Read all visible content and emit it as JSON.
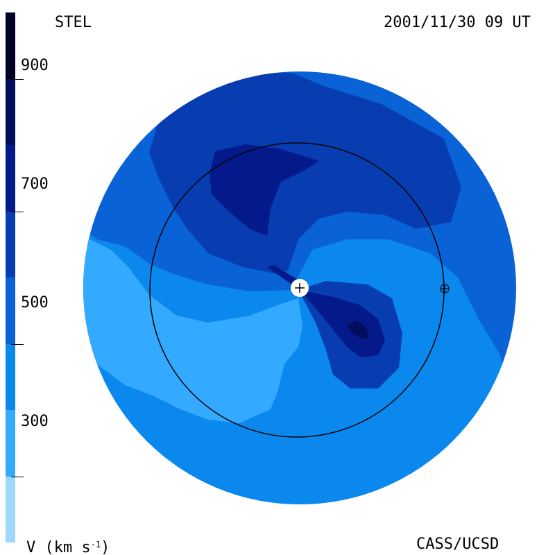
{
  "header": {
    "source": "STEL",
    "timestamp": "2001/11/30 09 UT"
  },
  "footer": {
    "units_text": "V (km s",
    "units_exponent": "-1",
    "units_close": ")",
    "credit": "CASS/UCSD"
  },
  "colorbar": {
    "quantity": "V",
    "unit": "km s-1",
    "tick_labels": [
      "900",
      "700",
      "500",
      "300"
    ],
    "tick_values": [
      900,
      700,
      500,
      300
    ],
    "levels": [
      {
        "from": 200,
        "to": 300,
        "color": "#9fd8ff"
      },
      {
        "from": 300,
        "to": 400,
        "color": "#33aaff"
      },
      {
        "from": 400,
        "to": 500,
        "color": "#0a88ee"
      },
      {
        "from": 500,
        "to": 600,
        "color": "#0962d6"
      },
      {
        "from": 600,
        "to": 700,
        "color": "#073db0"
      },
      {
        "from": 700,
        "to": 800,
        "color": "#041a8a"
      },
      {
        "from": 800,
        "to": 900,
        "color": "#020e5c"
      },
      {
        "from": 900,
        "to": 1000,
        "color": "#000424"
      }
    ]
  },
  "markers": {
    "sun_icon": "plus-in-circle",
    "earth_icon": "circled-plus",
    "earth_orbit": "circle"
  },
  "colors": {
    "outer_disk": "#0962d6",
    "speed_300_400": "#33aaff",
    "speed_400_500": "#0a88ee",
    "speed_500_600": "#0962d6",
    "speed_600_700": "#073db0",
    "speed_700_800": "#041a8a",
    "speed_800_900": "#020e5c"
  }
}
